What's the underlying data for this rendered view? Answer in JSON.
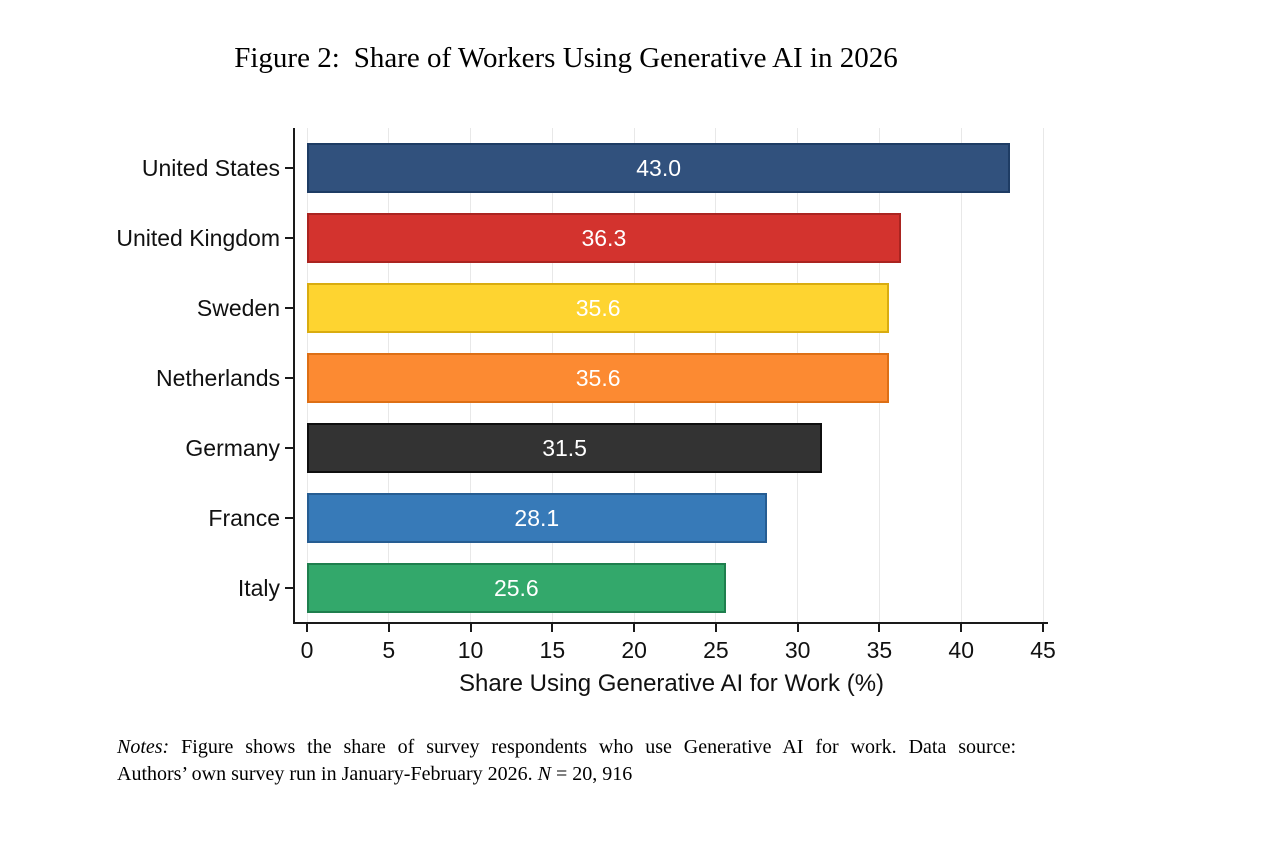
{
  "figure": {
    "title_prefix": "Figure 2:",
    "title_text": "Share of Workers Using Generative AI in 2026"
  },
  "chart_data": {
    "type": "bar",
    "orientation": "horizontal",
    "title": "Figure 2: Share of Workers Using Generative AI in 2026",
    "categories": [
      "United States",
      "United Kingdom",
      "Sweden",
      "Netherlands",
      "Germany",
      "France",
      "Italy"
    ],
    "values": [
      43.0,
      36.3,
      35.6,
      35.6,
      31.5,
      28.1,
      25.6
    ],
    "value_labels": [
      "43.0",
      "36.3",
      "35.6",
      "35.6",
      "31.5",
      "28.1",
      "25.6"
    ],
    "bar_colors": [
      "#31517d",
      "#d3332e",
      "#fed430",
      "#fc8a32",
      "#333333",
      "#377ab8",
      "#33a86b"
    ],
    "bar_border_colors": [
      "#1e3c64",
      "#aa2420",
      "#d9ac10",
      "#dd6f15",
      "#0f0f0f",
      "#265d92",
      "#1f7f4e"
    ],
    "xlabel": "Share Using Generative AI for Work (%)",
    "ylabel": "",
    "xlim": [
      0,
      45
    ],
    "xticks": [
      0,
      5,
      10,
      15,
      20,
      25,
      30,
      35,
      40,
      45
    ],
    "grid": "vertical light gridlines at each x tick",
    "legend": "none",
    "value_label_color": "#ffffff",
    "gridline_color": "#e8e8e8",
    "axis_color": "#1a1a1a",
    "background": "#ffffff"
  },
  "notes": {
    "label": "Notes:",
    "line1_rest": "Figure shows the share of survey respondents who use Generative AI for work.  Data source:",
    "line2_part1": "Authors’ own survey run in January-February 2026.",
    "n_symbol": "N",
    "n_value": "= 20, 916"
  }
}
